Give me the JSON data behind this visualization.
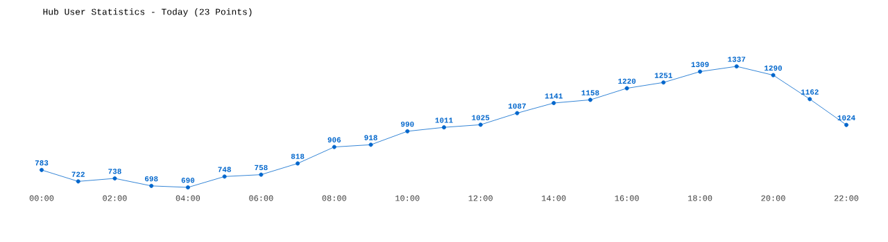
{
  "chart_data": {
    "type": "line",
    "title": "Hub User Statistics - Today (23 Points)",
    "categories": [
      "00:00",
      null,
      "02:00",
      null,
      "04:00",
      null,
      "06:00",
      null,
      "08:00",
      null,
      "10:00",
      null,
      "12:00",
      null,
      "14:00",
      null,
      "16:00",
      null,
      "18:00",
      null,
      "20:00",
      null,
      "22:00"
    ],
    "values": [
      783,
      722,
      738,
      698,
      690,
      748,
      758,
      818,
      906,
      918,
      990,
      1011,
      1025,
      1087,
      1141,
      1158,
      1220,
      1251,
      1309,
      1337,
      1290,
      1162,
      1024
    ],
    "color": "#0066cc",
    "marker": "circle",
    "line_style": "solid",
    "data_labels": true
  }
}
